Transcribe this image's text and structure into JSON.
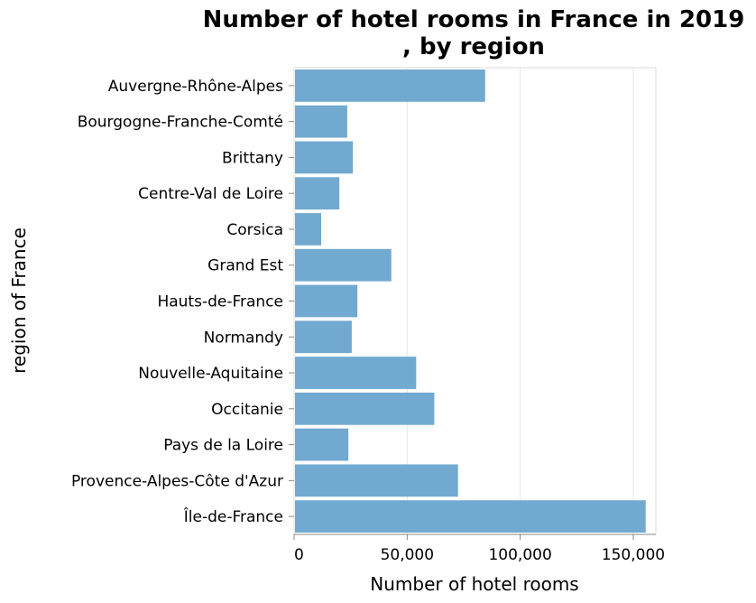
{
  "chart_data": {
    "type": "bar",
    "orientation": "horizontal",
    "title": [
      "Number of hotel rooms in France in 2019",
      ", by region"
    ],
    "xlabel": "Number of hotel rooms",
    "ylabel": "region of France",
    "xlim": [
      0,
      160000
    ],
    "xticks": [
      0,
      50000,
      100000,
      150000
    ],
    "xtick_labels": [
      "0",
      "50,000",
      "100,000",
      "150,000"
    ],
    "grid": true,
    "color": "#72a9d0",
    "categories": [
      "Auvergne-Rhône-Alpes",
      "Bourgogne-Franche-Comté",
      "Brittany",
      "Centre-Val de Loire",
      "Corsica",
      "Grand Est",
      "Hauts-de-France",
      "Normandy",
      "Nouvelle-Aquitaine",
      "Occitanie",
      "Pays de la Loire",
      "Provence-Alpes-Côte d'Azur",
      "Île-de-France"
    ],
    "values": [
      84500,
      23500,
      26000,
      20000,
      12000,
      43000,
      28000,
      25500,
      54000,
      62000,
      24000,
      72500,
      155500
    ]
  }
}
